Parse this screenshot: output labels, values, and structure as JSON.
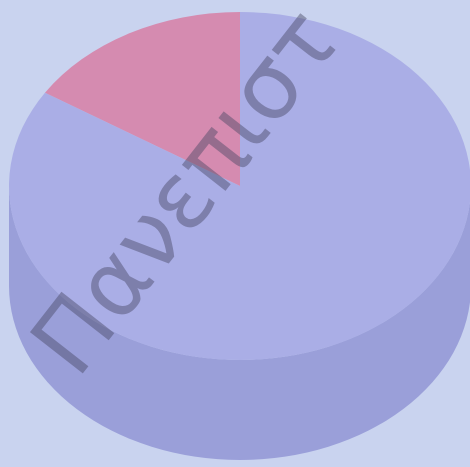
{
  "chart_data": {
    "type": "pie",
    "values": [
      16,
      84
    ],
    "colors": [
      "#d58bb0",
      "#aaaee6"
    ],
    "side_colors": [
      "#c07a9c",
      "#9a9fd9"
    ]
  },
  "watermark": "Πανεπιστ"
}
